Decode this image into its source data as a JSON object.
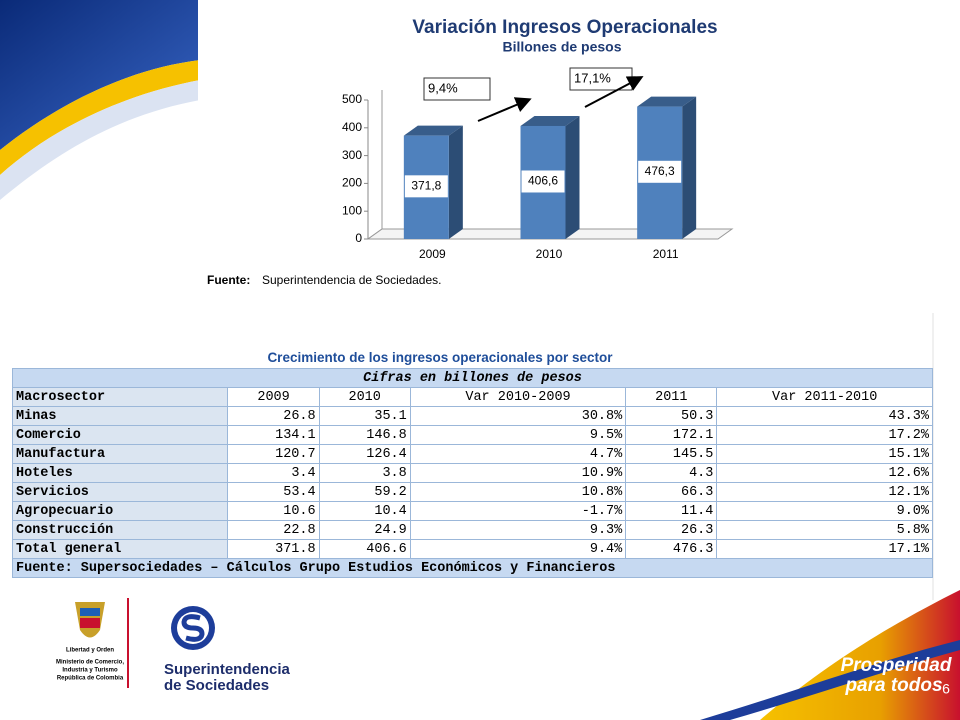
{
  "chart_data": {
    "type": "bar3d",
    "title": "Variación Ingresos Operacionales",
    "subtitle": "Billones de pesos",
    "categories": [
      "2009",
      "2010",
      "2011"
    ],
    "values": [
      371.8,
      406.6,
      476.3
    ],
    "value_labels": [
      "371,8",
      "406,6",
      "476,3"
    ],
    "color": "#4f81bd",
    "ylim": [
      0,
      500
    ],
    "yticks": [
      0,
      100,
      200,
      300,
      400,
      500
    ],
    "annotations": [
      "9,4%",
      "17,1%"
    ],
    "source_label": "Fuente:",
    "source": "Superintendencia de Sociedades."
  },
  "table": {
    "caption": "Crecimiento de los ingresos operacionales por sector",
    "title": "Cifras en billones de pesos",
    "columns": [
      "Macrosector",
      "2009",
      "2010",
      "Var 2010-2009",
      "2011",
      "Var 2011-2010"
    ],
    "rows": [
      [
        "Minas",
        "26.8",
        "35.1",
        "30.8%",
        "50.3",
        "43.3%"
      ],
      [
        "Comercio",
        "134.1",
        "146.8",
        "9.5%",
        "172.1",
        "17.2%"
      ],
      [
        "Manufactura",
        "120.7",
        "126.4",
        "4.7%",
        "145.5",
        "15.1%"
      ],
      [
        "Hoteles",
        "3.4",
        "3.8",
        "10.9%",
        "4.3",
        "12.6%"
      ],
      [
        "Servicios",
        "53.4",
        "59.2",
        "10.8%",
        "66.3",
        "12.1%"
      ],
      [
        "Agropecuario",
        "10.6",
        "10.4",
        "-1.7%",
        "11.4",
        "9.0%"
      ],
      [
        "Construcción",
        "22.8",
        "24.9",
        "9.3%",
        "26.3",
        "5.8%"
      ],
      [
        "Total general",
        "371.8",
        "406.6",
        "9.4%",
        "476.3",
        "17.1%"
      ]
    ],
    "footer": "Fuente: Supersociedades – Cálculos Grupo Estudios Económicos y Financieros"
  },
  "footer": {
    "motto": "Libertad y Orden",
    "ministry": [
      "Ministerio de Comercio,",
      "Industria y Turismo",
      "República de Colombia"
    ],
    "agency": [
      "Superintendencia",
      "de Sociedades"
    ],
    "slogan": [
      "Prosperidad",
      "para todos"
    ],
    "page": "6"
  }
}
